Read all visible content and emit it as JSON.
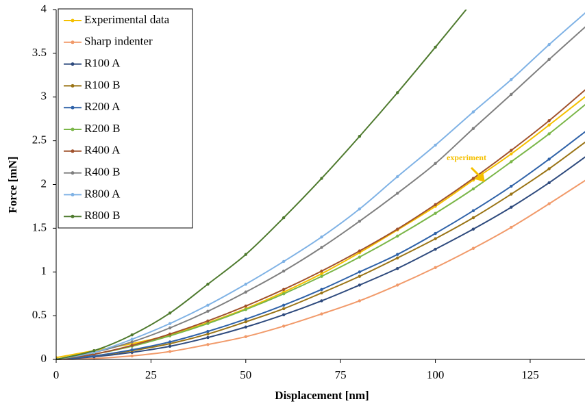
{
  "chart_data": {
    "type": "line",
    "xlabel": "Displacement [nm]",
    "ylabel": "Force [mN]",
    "annotation": "experiment",
    "xlim": [
      0,
      140
    ],
    "ylim": [
      0,
      4
    ],
    "xticks": [
      0,
      25,
      50,
      75,
      100,
      125
    ],
    "yticks": [
      0,
      0.5,
      1,
      1.5,
      2,
      2.5,
      3,
      3.5,
      4
    ],
    "legend": "upper left",
    "x": [
      0,
      10,
      20,
      30,
      40,
      50,
      60,
      70,
      80,
      90,
      100,
      110,
      120,
      130,
      140
    ],
    "series": [
      {
        "name": "Experimental data",
        "color": "#f5c000",
        "values": [
          0.02,
          0.1,
          0.18,
          0.28,
          0.42,
          0.58,
          0.77,
          0.98,
          1.22,
          1.48,
          1.75,
          2.05,
          2.35,
          2.68,
          3.02
        ]
      },
      {
        "name": "Sharp indenter",
        "color": "#f19a6a",
        "values": [
          0,
          0.01,
          0.04,
          0.09,
          0.17,
          0.26,
          0.38,
          0.52,
          0.67,
          0.85,
          1.05,
          1.27,
          1.51,
          1.78,
          2.06
        ]
      },
      {
        "name": "R100 A",
        "color": "#2e4a7d",
        "values": [
          0,
          0.03,
          0.08,
          0.15,
          0.25,
          0.37,
          0.51,
          0.67,
          0.85,
          1.04,
          1.26,
          1.49,
          1.74,
          2.02,
          2.33
        ]
      },
      {
        "name": "R100 B",
        "color": "#9a7416",
        "values": [
          0,
          0.04,
          0.1,
          0.18,
          0.29,
          0.43,
          0.58,
          0.76,
          0.95,
          1.16,
          1.38,
          1.62,
          1.89,
          2.18,
          2.5
        ]
      },
      {
        "name": "R200 A",
        "color": "#2f62a8",
        "values": [
          0,
          0.04,
          0.11,
          0.2,
          0.32,
          0.46,
          0.62,
          0.8,
          1.0,
          1.2,
          1.44,
          1.7,
          1.98,
          2.29,
          2.62
        ]
      },
      {
        "name": "R200 B",
        "color": "#7ab648",
        "values": [
          0,
          0.06,
          0.15,
          0.27,
          0.41,
          0.57,
          0.75,
          0.95,
          1.17,
          1.41,
          1.67,
          1.95,
          2.26,
          2.58,
          2.93
        ]
      },
      {
        "name": "R400 A",
        "color": "#a0522d",
        "values": [
          0,
          0.06,
          0.16,
          0.29,
          0.44,
          0.61,
          0.8,
          1.01,
          1.24,
          1.49,
          1.77,
          2.07,
          2.39,
          2.73,
          3.1
        ]
      },
      {
        "name": "R400 B",
        "color": "#7f7f7f",
        "values": [
          0,
          0.08,
          0.2,
          0.36,
          0.55,
          0.77,
          1.01,
          1.28,
          1.58,
          1.9,
          2.24,
          2.64,
          3.03,
          3.43,
          3.82
        ]
      },
      {
        "name": "R800 A",
        "color": "#7fb2e5",
        "values": [
          0,
          0.08,
          0.23,
          0.41,
          0.62,
          0.86,
          1.12,
          1.4,
          1.72,
          2.09,
          2.45,
          2.83,
          3.2,
          3.6,
          3.98
        ]
      },
      {
        "name": "R800 B",
        "color": "#4e7a2e",
        "values": [
          0,
          0.1,
          0.28,
          0.53,
          0.86,
          1.2,
          1.62,
          2.07,
          2.55,
          3.05,
          3.57,
          4.1,
          null,
          null,
          null
        ]
      }
    ]
  }
}
